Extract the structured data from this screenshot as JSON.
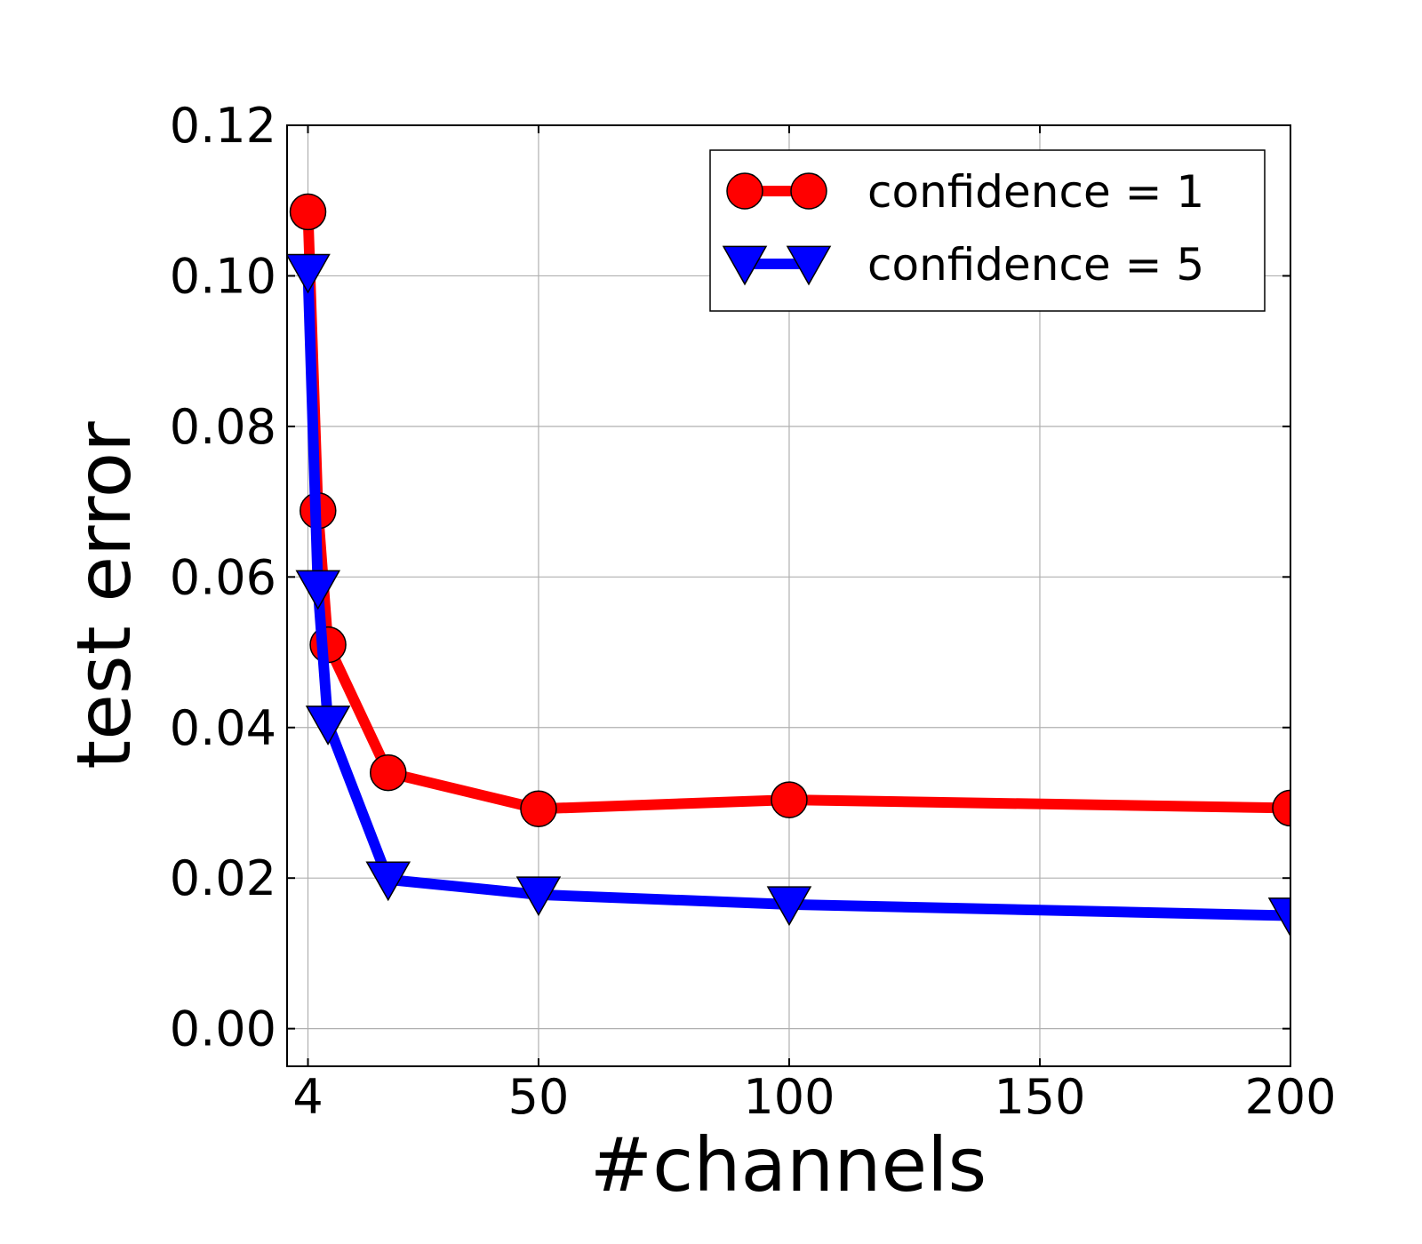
{
  "chart_data": {
    "type": "line",
    "xlabel": "#channels",
    "ylabel": "test error",
    "xlim": [
      0,
      200
    ],
    "ylim": [
      -0.005,
      0.12
    ],
    "xticks": [
      4,
      50,
      100,
      150,
      200
    ],
    "xtick_labels": [
      "4",
      "50",
      "100",
      "150",
      "200"
    ],
    "yticks": [
      0.0,
      0.02,
      0.04,
      0.06,
      0.08,
      0.1,
      0.12
    ],
    "ytick_labels": [
      "0.00",
      "0.02",
      "0.04",
      "0.06",
      "0.08",
      "0.10",
      "0.12"
    ],
    "grid": true,
    "legend_position": "top-right",
    "series": [
      {
        "name": "confidence = 1",
        "color": "#ff0000",
        "marker": "circle",
        "x": [
          4,
          6,
          8,
          20,
          50,
          100,
          200
        ],
        "y": [
          0.1085,
          0.0688,
          0.051,
          0.034,
          0.0292,
          0.0304,
          0.0293
        ]
      },
      {
        "name": "confidence = 5",
        "color": "#0000ff",
        "marker": "triangle-down",
        "x": [
          4,
          6,
          8,
          20,
          50,
          100,
          200
        ],
        "y": [
          0.1005,
          0.0585,
          0.0405,
          0.0198,
          0.0178,
          0.0165,
          0.015
        ]
      }
    ]
  }
}
